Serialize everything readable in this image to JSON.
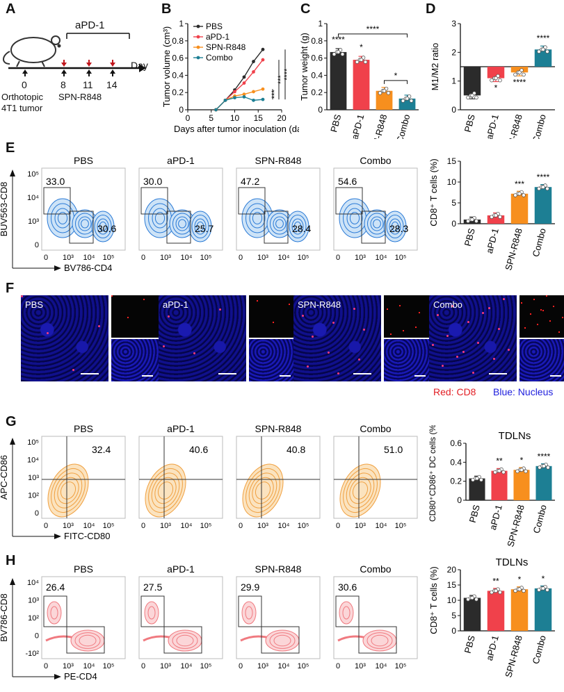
{
  "panels": {
    "A": "A",
    "B": "B",
    "C": "C",
    "D": "D",
    "E": "E",
    "F": "F",
    "G": "G",
    "H": "H"
  },
  "schematic": {
    "treatment": "aPD-1",
    "days": [
      "0",
      "8",
      "11",
      "14"
    ],
    "day_label": "Day",
    "model": "Orthotopic",
    "model2": "4T1 tumor",
    "agent": "SPN-R848"
  },
  "groups": [
    "PBS",
    "aPD-1",
    "SPN-R848",
    "Combo"
  ],
  "colors": {
    "PBS": "#2b2b2b",
    "aPD-1": "#f0414b",
    "SPN-R848": "#f78f1e",
    "Combo": "#1d7f94"
  },
  "flow_E": {
    "yaxis": "BUV563-CD8",
    "xaxis": "BV786-CD4",
    "top_values": [
      "33.0",
      "30.0",
      "47.2",
      "54.6"
    ],
    "right_values": [
      "30.6",
      "25.7",
      "28.4",
      "28.3"
    ],
    "y_ticks": [
      "10⁵",
      "10⁴",
      "10³",
      "0"
    ],
    "x_ticks": [
      "0",
      "10³",
      "10⁴",
      "10⁵"
    ]
  },
  "flow_G": {
    "yaxis": "APC-CD86",
    "xaxis": "FITC-CD80",
    "values": [
      "32.4",
      "40.6",
      "40.8",
      "51.0"
    ],
    "y_ticks": [
      "10⁵",
      "10⁴",
      "10³",
      "10²",
      "0"
    ],
    "x_ticks": [
      "0",
      "10³",
      "10⁴",
      "10⁵"
    ]
  },
  "flow_H": {
    "yaxis": "BV786-CD8",
    "xaxis": "PE-CD4",
    "values": [
      "26.4",
      "27.5",
      "29.9",
      "30.6"
    ],
    "y_ticks": [
      "10⁴",
      "10³",
      "10²",
      "0",
      "-10²"
    ],
    "x_ticks": [
      "0",
      "10³",
      "10⁴",
      "10⁵"
    ]
  },
  "images_F": {
    "labels": [
      "PBS",
      "aPD-1",
      "SPN-R848",
      "Combo"
    ],
    "legend_red": "Red: CD8",
    "legend_blue": "Blue: Nucleus"
  },
  "chart_data": [
    {
      "id": "B",
      "type": "line",
      "xlabel": "Days after tumor inoculation (day)",
      "ylabel": "Tumor volume (cm³)",
      "xlim": [
        0,
        20
      ],
      "ylim": [
        0,
        1.0
      ],
      "xticks": [
        0,
        5,
        10,
        15,
        20
      ],
      "yticks": [
        0,
        0.2,
        0.4,
        0.6,
        0.8,
        1.0
      ],
      "x": [
        6,
        8,
        10,
        12,
        14,
        16
      ],
      "series": [
        {
          "name": "PBS",
          "values": [
            0.0,
            0.11,
            0.23,
            0.38,
            0.56,
            0.7
          ]
        },
        {
          "name": "aPD-1",
          "values": [
            0.0,
            0.11,
            0.21,
            0.31,
            0.44,
            0.58
          ]
        },
        {
          "name": "SPN-R848",
          "values": [
            0.0,
            0.11,
            0.16,
            0.18,
            0.21,
            0.24
          ]
        },
        {
          "name": "Combo",
          "values": [
            0.0,
            0.11,
            0.14,
            0.15,
            0.11,
            0.12
          ]
        }
      ],
      "significance": [
        "****",
        "***",
        "***"
      ]
    },
    {
      "id": "C",
      "type": "bar",
      "ylabel": "Tumor weight (g)",
      "ylim": [
        0,
        1.0
      ],
      "yticks": [
        0,
        0.2,
        0.4,
        0.6,
        0.8,
        1.0
      ],
      "categories": [
        "PBS",
        "aPD-1",
        "SPN-R848",
        "Combo"
      ],
      "values": [
        0.67,
        0.58,
        0.22,
        0.13
      ],
      "significance": [
        "****",
        "*"
      ]
    },
    {
      "id": "D",
      "type": "bar",
      "ylabel": "M1/M2 ratio",
      "ylim": [
        0,
        3
      ],
      "baseline": 1.5,
      "yticks": [
        0,
        1,
        2,
        3
      ],
      "categories": [
        "PBS",
        "aPD-1",
        "SPN-R848",
        "Combo"
      ],
      "values": [
        0.5,
        1.1,
        1.3,
        2.1
      ],
      "significance": [
        "",
        "*",
        "****",
        "****"
      ]
    },
    {
      "id": "E",
      "type": "bar",
      "ylabel": "CD8⁺ T cells (%)",
      "ylim": [
        0,
        15
      ],
      "yticks": [
        0,
        5,
        10,
        15
      ],
      "categories": [
        "PBS",
        "aPD-1",
        "SPN-R848",
        "Combo"
      ],
      "values": [
        1.0,
        2.0,
        7.2,
        8.8
      ],
      "significance": [
        "",
        "",
        "***",
        "****"
      ]
    },
    {
      "id": "G",
      "type": "bar",
      "title": "TDLNs",
      "ylabel": "CD80⁺CD86⁺ DC cells (%)",
      "ylim": [
        0,
        0.6
      ],
      "yticks": [
        0,
        0.2,
        0.4,
        0.6
      ],
      "categories": [
        "PBS",
        "aPD-1",
        "SPN-R848",
        "Combo"
      ],
      "values": [
        0.23,
        0.31,
        0.32,
        0.36
      ],
      "significance": [
        "",
        "**",
        "*",
        "****"
      ]
    },
    {
      "id": "H",
      "type": "bar",
      "title": "TDLNs",
      "ylabel": "CD8⁺ T cells (%)",
      "ylim": [
        0,
        20
      ],
      "yticks": [
        0,
        5,
        10,
        15,
        20
      ],
      "categories": [
        "PBS",
        "aPD-1",
        "SPN-R848",
        "Combo"
      ],
      "values": [
        10.8,
        13.1,
        13.6,
        13.9
      ],
      "significance": [
        "",
        "**",
        "*",
        "*"
      ]
    }
  ]
}
